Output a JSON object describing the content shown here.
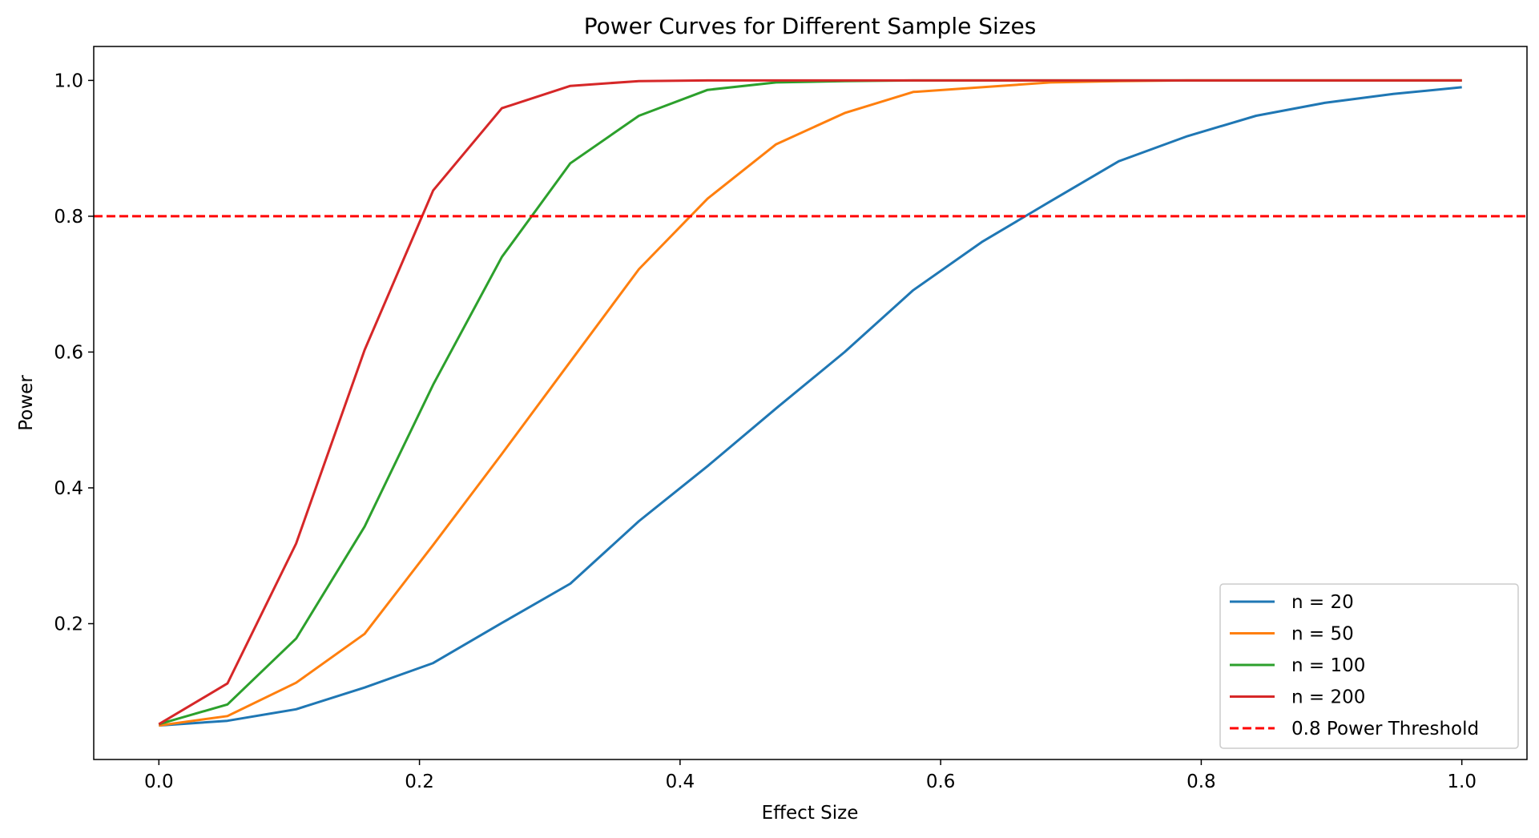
{
  "chart_data": {
    "type": "line",
    "title": "Power Curves for Different Sample Sizes",
    "xlabel": "Effect Size",
    "ylabel": "Power",
    "xlim": [
      -0.05,
      1.05
    ],
    "ylim": [
      0.0,
      1.05
    ],
    "xticks": [
      0.0,
      0.2,
      0.4,
      0.6,
      0.8,
      1.0
    ],
    "xtick_labels": [
      "0.0",
      "0.2",
      "0.4",
      "0.6",
      "0.8",
      "1.0"
    ],
    "yticks": [
      0.2,
      0.4,
      0.6,
      0.8,
      1.0
    ],
    "ytick_labels": [
      "0.2",
      "0.4",
      "0.6",
      "0.8",
      "1.0"
    ],
    "grid": false,
    "legend_position": "lower-right",
    "x": [
      0.0,
      0.0526,
      0.1053,
      0.1579,
      0.2105,
      0.2632,
      0.3158,
      0.3684,
      0.4211,
      0.4737,
      0.5263,
      0.5789,
      0.6316,
      0.6842,
      0.7368,
      0.7895,
      0.8421,
      0.8947,
      0.9474,
      1.0
    ],
    "series": [
      {
        "name": "n = 20",
        "color": "#1f77b4",
        "values": [
          0.05,
          0.057,
          0.074,
          0.106,
          0.142,
          0.201,
          0.259,
          0.351,
          0.432,
          0.517,
          0.6,
          0.691,
          0.762,
          0.822,
          0.881,
          0.918,
          0.948,
          0.967,
          0.98,
          0.99
        ]
      },
      {
        "name": "n = 50",
        "color": "#ff7f0e",
        "values": [
          0.05,
          0.064,
          0.113,
          0.185,
          0.316,
          0.45,
          0.586,
          0.722,
          0.826,
          0.906,
          0.952,
          0.983,
          0.99,
          0.997,
          0.999,
          1.0,
          1.0,
          1.0,
          1.0,
          1.0
        ]
      },
      {
        "name": "n = 100",
        "color": "#2ca02c",
        "values": [
          0.052,
          0.081,
          0.178,
          0.343,
          0.552,
          0.74,
          0.878,
          0.948,
          0.986,
          0.997,
          0.999,
          1.0,
          1.0,
          1.0,
          1.0,
          1.0,
          1.0,
          1.0,
          1.0,
          1.0
        ]
      },
      {
        "name": "n = 200",
        "color": "#d62728",
        "values": [
          0.052,
          0.112,
          0.318,
          0.603,
          0.838,
          0.959,
          0.992,
          0.999,
          1.0,
          1.0,
          1.0,
          1.0,
          1.0,
          1.0,
          1.0,
          1.0,
          1.0,
          1.0,
          1.0,
          1.0
        ]
      }
    ],
    "reference_line": {
      "name": "0.8 Power Threshold",
      "y": 0.8,
      "color": "#ff0000",
      "style": "dashed"
    }
  }
}
